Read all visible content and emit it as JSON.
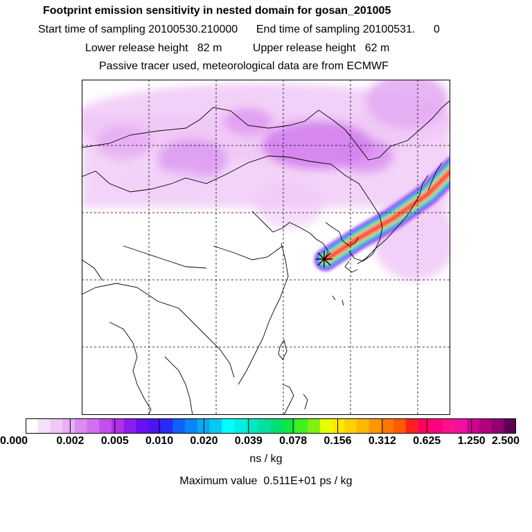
{
  "header": {
    "title": "Footprint emission sensitivity in nested domain for gosan_201005",
    "sampling_line": "Start time of sampling 20100530.210000      End time of sampling 20100531.      0",
    "release_line": "Lower release height   82 m          Upper release height   62 m",
    "tracer_line": "Passive tracer used, meteorological data are from ECMWF"
  },
  "colorbar": {
    "labels": [
      "0.000",
      "0.002",
      "0.005",
      "0.010",
      "0.020",
      "0.039",
      "0.078",
      "0.156",
      "0.312",
      "0.625",
      "1.250",
      "2.500"
    ],
    "colors": [
      "#ffffff",
      "#f7e0fb",
      "#f0c8f7",
      "#e8b0f4",
      "#dc8cf0",
      "#d070ee",
      "#c450ec",
      "#b030ea",
      "#8a1cf0",
      "#6a10f2",
      "#4a14f6",
      "#2a2af8",
      "#1060f8",
      "#0a84f6",
      "#08a8f4",
      "#06c8f2",
      "#00ffff",
      "#00f0e0",
      "#00e8c0",
      "#00e0a0",
      "#00e070",
      "#10e840",
      "#40f020",
      "#80f010",
      "#e6ff00",
      "#ffe800",
      "#ffd000",
      "#ffb800",
      "#ff9600",
      "#ff7800",
      "#ff5a00",
      "#ff2020",
      "#ff0060",
      "#ff0080",
      "#ff1090",
      "#f010a0",
      "#d00090",
      "#b00080",
      "#900070",
      "#600050"
    ],
    "units": "ns / kg"
  },
  "footer": {
    "max_line": "Maximum value  0.511E+01 ps / kg"
  },
  "map": {
    "release_marker": "release-point-star-icon"
  }
}
